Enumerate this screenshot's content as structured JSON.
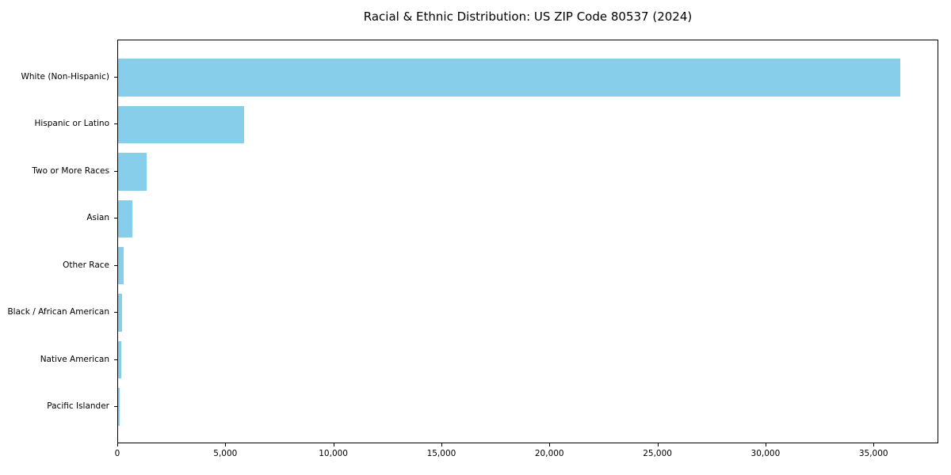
{
  "title": "Racial & Ethnic Distribution: US ZIP Code 80537 (2024)",
  "chart_data": {
    "type": "bar",
    "orientation": "horizontal",
    "title": "Racial & Ethnic Distribution: US ZIP Code 80537 (2024)",
    "xlabel": "",
    "ylabel": "",
    "categories": [
      "White (Non-Hispanic)",
      "Hispanic or Latino",
      "Two or More Races",
      "Asian",
      "Other Race",
      "Black / African American",
      "Native American",
      "Pacific Islander"
    ],
    "values": [
      36200,
      5850,
      1330,
      650,
      260,
      195,
      160,
      90
    ],
    "xlim": [
      0,
      38000
    ],
    "x_ticks": [
      0,
      5000,
      10000,
      15000,
      20000,
      25000,
      30000,
      35000
    ],
    "x_tick_labels": [
      "0",
      "5,000",
      "10,000",
      "15,000",
      "20,000",
      "25,000",
      "30,000",
      "35,000"
    ],
    "grid": false,
    "legend": false,
    "bar_color": "#87CEEB"
  },
  "colors": {
    "bar": "#87CEEB",
    "spine": "#000000",
    "text": "#000000",
    "background": "#ffffff"
  }
}
